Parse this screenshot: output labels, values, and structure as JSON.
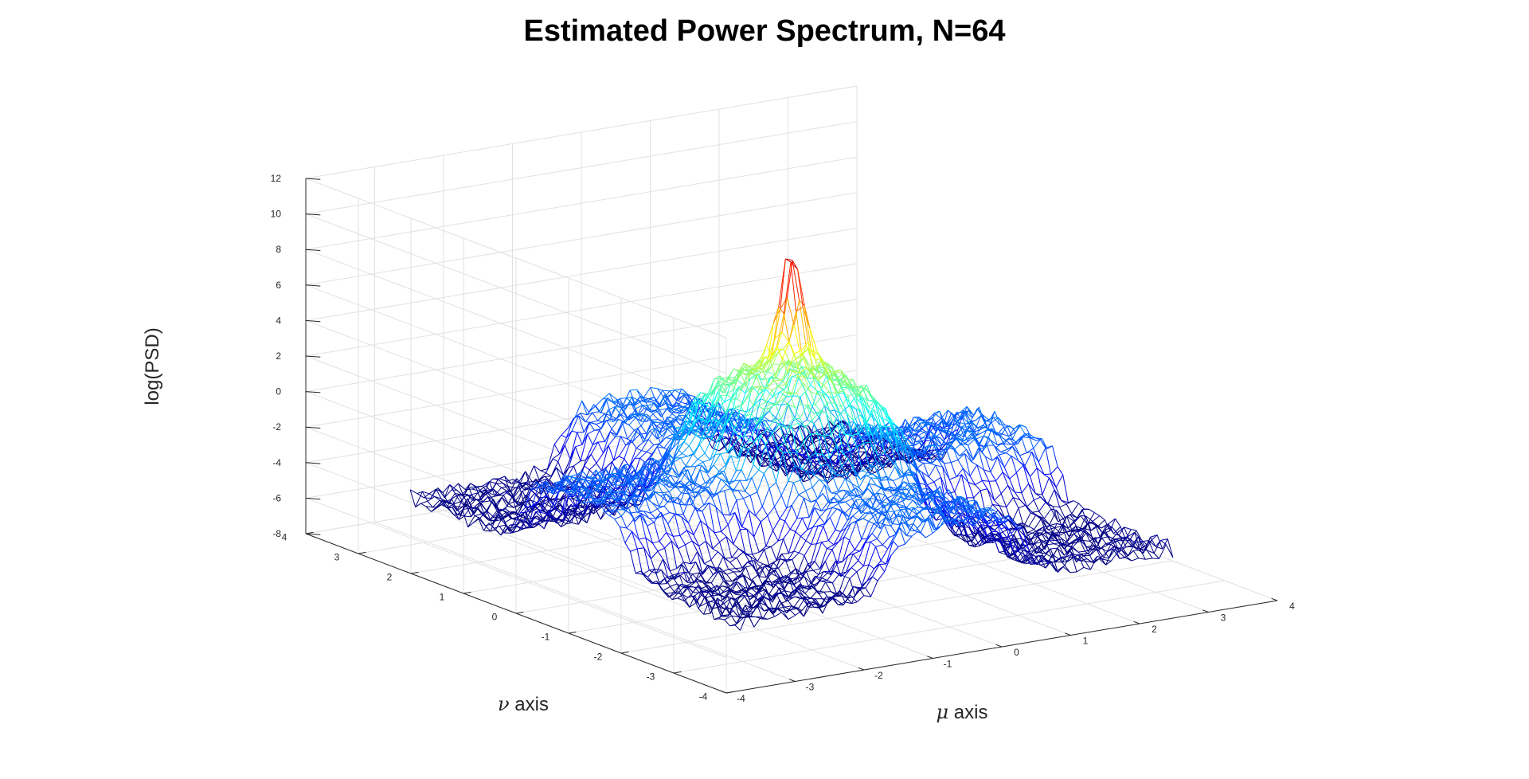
{
  "chart_data": {
    "type": "surface",
    "title": "Estimated Power Spectrum, N=64",
    "xlabel": "μ axis",
    "ylabel": "ν axis",
    "zlabel": "log(PSD)",
    "x_axis": {
      "symbol": "μ",
      "word": "axis",
      "lim": [
        -4,
        4
      ],
      "ticks": [
        -4,
        -3,
        -2,
        -1,
        0,
        1,
        2,
        3,
        4
      ]
    },
    "y_axis": {
      "symbol": "ν",
      "word": "axis",
      "lim": [
        -4,
        4
      ],
      "ticks": [
        -4,
        -3,
        -2,
        -1,
        0,
        1,
        2,
        3,
        4
      ]
    },
    "z_axis": {
      "lim": [
        -8,
        12
      ],
      "ticks": [
        -8,
        -6,
        -4,
        -2,
        0,
        2,
        4,
        6,
        8,
        10,
        12
      ]
    },
    "grid": true,
    "mesh": {
      "extent": [
        -3.14,
        3.14
      ],
      "resolution": 64,
      "style": "wireframe",
      "colormap": "jet"
    },
    "surface_model": {
      "background_level": -5.5,
      "noise_amplitude": 0.5,
      "ridge_along_mu": {
        "height": 3.5,
        "halfwidth_nu": 1.0
      },
      "ridge_along_nu": {
        "height": 3.5,
        "halfwidth_mu": 1.0
      },
      "center_bump": {
        "height": 2.3,
        "sigma": 0.55
      },
      "peak": {
        "mu": 0,
        "nu": 0,
        "value": 10.5,
        "sigma": 0.13
      }
    },
    "colors": {
      "axis": "#262626",
      "grid": "#e1e1e1",
      "colormap_stops": [
        "#00008f",
        "#0000ff",
        "#00ffff",
        "#ffff00",
        "#ff0000",
        "#800000"
      ]
    }
  }
}
